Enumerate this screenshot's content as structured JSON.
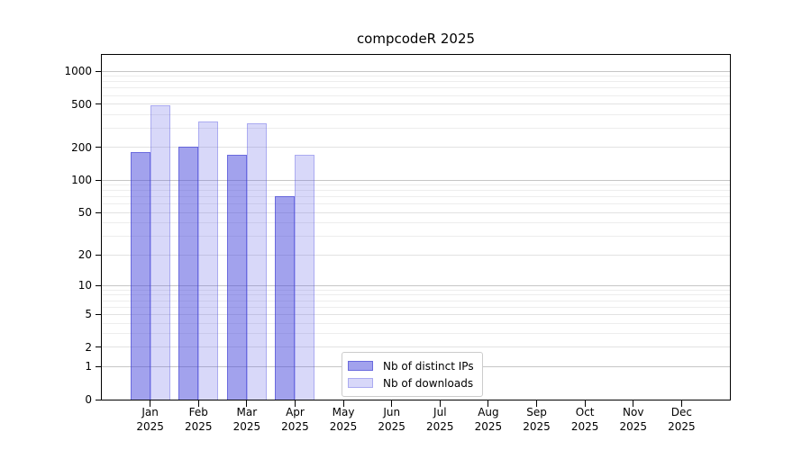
{
  "chart_data": {
    "type": "bar",
    "title": "compcodeR 2025",
    "categories": [
      "Jan",
      "Feb",
      "Mar",
      "Apr",
      "May",
      "Jun",
      "Jul",
      "Aug",
      "Sep",
      "Oct",
      "Nov",
      "Dec"
    ],
    "category_year": "2025",
    "series": [
      {
        "name": "Nb of distinct IPs",
        "color": "rgba(70,70,220,0.50)",
        "edge_color": "rgba(60,60,210,0.55)",
        "values": [
          182,
          204,
          172,
          71,
          0,
          0,
          0,
          0,
          0,
          0,
          0,
          0
        ]
      },
      {
        "name": "Nb of downloads",
        "color": "rgba(100,100,230,0.25)",
        "edge_color": "rgba(90,90,225,0.35)",
        "values": [
          488,
          347,
          334,
          172,
          0,
          0,
          0,
          0,
          0,
          0,
          0,
          0
        ]
      }
    ],
    "yscale": "log1p",
    "ylim": [
      0,
      1410
    ],
    "yticks": [
      0,
      1,
      2,
      5,
      10,
      20,
      50,
      100,
      200,
      500,
      1000
    ],
    "minor_gridlines": [
      3,
      4,
      6,
      7,
      8,
      9,
      30,
      40,
      60,
      70,
      80,
      90,
      300,
      400,
      600,
      700,
      800,
      900
    ],
    "emphasized_gridlines": [
      1,
      10,
      100,
      1000
    ],
    "grid": true,
    "legend_position": "bottom-center-left"
  }
}
